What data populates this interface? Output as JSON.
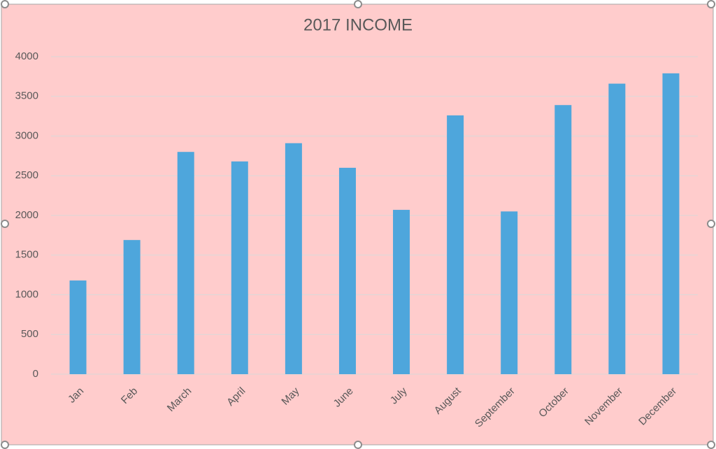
{
  "chart_data": {
    "type": "bar",
    "title": "2017 INCOME",
    "categories": [
      "Jan",
      "Feb",
      "March",
      "April",
      "May",
      "June",
      "July",
      "August",
      "September",
      "October",
      "November",
      "December"
    ],
    "values": [
      1180,
      1690,
      2800,
      2680,
      2910,
      2600,
      2070,
      3260,
      2050,
      3390,
      3660,
      3790
    ],
    "color": "#4ea6dc",
    "ylim": [
      0,
      4000
    ],
    "yticks": [
      0,
      500,
      1000,
      1500,
      2000,
      2500,
      3000,
      3500,
      4000
    ],
    "grid": true
  }
}
